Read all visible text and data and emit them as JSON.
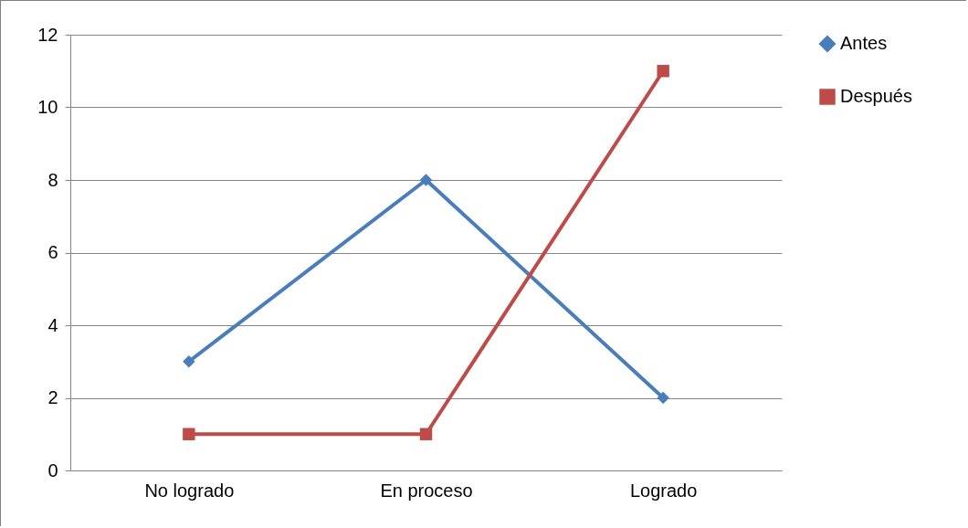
{
  "chart_data": {
    "type": "line",
    "categories": [
      "No logrado",
      "En proceso",
      "Logrado"
    ],
    "series": [
      {
        "name": "Antes",
        "color": "#4a7ebb",
        "marker": "diamond",
        "values": [
          3,
          8,
          2
        ]
      },
      {
        "name": "Después",
        "color": "#be4b48",
        "marker": "square",
        "values": [
          1,
          1,
          11
        ]
      }
    ],
    "ylim": [
      0,
      12
    ],
    "yticks": [
      0,
      2,
      4,
      6,
      8,
      10,
      12
    ],
    "grid": "y",
    "legend": "right"
  }
}
